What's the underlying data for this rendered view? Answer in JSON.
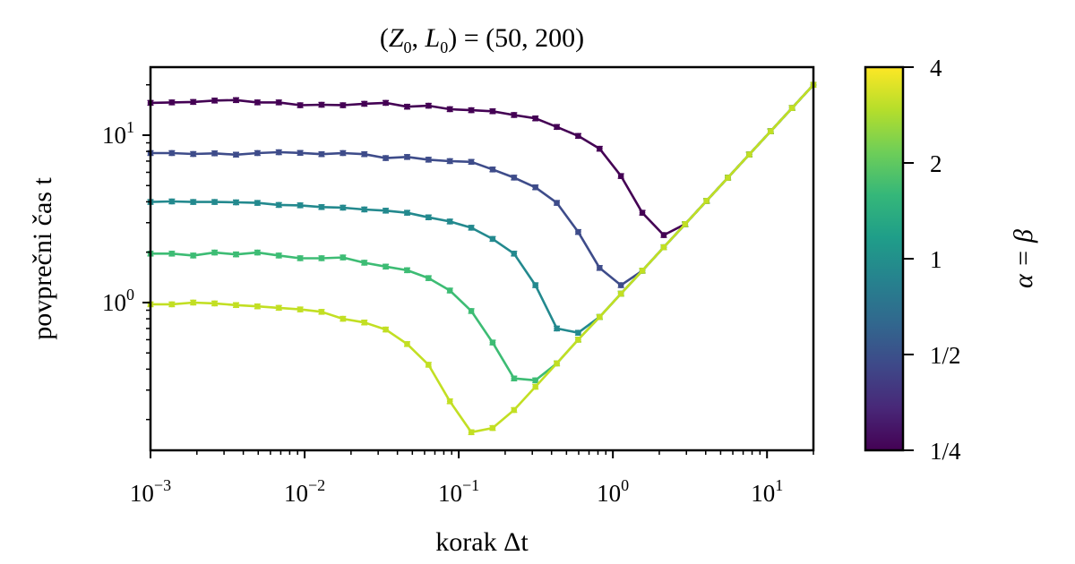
{
  "chart_data": {
    "type": "line",
    "title": "(Z0, L0) = (50, 200)",
    "title_parts": {
      "open": "(",
      "z": "Z",
      "z_sub": "0",
      "comma": ", ",
      "l": "L",
      "l_sub": "0",
      "rest": ") = (50, 200)"
    },
    "xlabel": "korak Δt",
    "ylabel": "povprečni čas t",
    "xscale": "log",
    "yscale": "log",
    "xlim": [
      0.001,
      20
    ],
    "ylim": [
      0.131,
      25.5
    ],
    "grid": false,
    "x_ticks": [
      {
        "base": "10",
        "exp": "−3",
        "value": 0.001
      },
      {
        "base": "10",
        "exp": "−2",
        "value": 0.01
      },
      {
        "base": "10",
        "exp": "−1",
        "value": 0.1
      },
      {
        "base": "10",
        "exp": "0",
        "value": 1
      },
      {
        "base": "10",
        "exp": "1",
        "value": 10
      }
    ],
    "y_ticks": [
      {
        "base": "10",
        "exp": "0",
        "value": 1
      },
      {
        "base": "10",
        "exp": "1",
        "value": 10
      }
    ],
    "x": [
      0.001,
      0.001376,
      0.001894,
      0.002607,
      0.003589,
      0.00494,
      0.0068,
      0.009359,
      0.01288,
      0.01773,
      0.02441,
      0.03359,
      0.04624,
      0.06364,
      0.0876,
      0.1206,
      0.1659,
      0.2284,
      0.3144,
      0.4327,
      0.5956,
      0.8198,
      1.128,
      1.553,
      2.138,
      2.942,
      4.05,
      5.574,
      7.672,
      10.56,
      14.53,
      20.0
    ],
    "series": [
      {
        "name": "α=β=1/4",
        "color": "#440154",
        "values": [
          15.6,
          15.7,
          15.8,
          16.1,
          16.2,
          15.7,
          15.7,
          15.1,
          15.2,
          15.1,
          15.4,
          15.6,
          14.8,
          15.0,
          14.3,
          14.1,
          13.9,
          13.2,
          12.6,
          11.2,
          9.9,
          8.3,
          5.7,
          3.44,
          2.53,
          2.94,
          4.05,
          5.57,
          7.67,
          10.56,
          14.53,
          20.0
        ]
      },
      {
        "name": "α=β=1/2",
        "color": "#3e4c8a",
        "values": [
          7.82,
          7.82,
          7.72,
          7.79,
          7.65,
          7.82,
          7.91,
          7.84,
          7.7,
          7.82,
          7.7,
          7.3,
          7.41,
          7.14,
          7.0,
          6.93,
          6.24,
          5.58,
          4.88,
          3.94,
          2.64,
          1.61,
          1.27,
          1.55,
          2.14,
          2.94,
          4.05,
          5.57,
          7.67,
          10.56,
          14.53,
          20.0
        ]
      },
      {
        "name": "α=β=1",
        "color": "#23898e",
        "values": [
          3.99,
          4.02,
          3.99,
          3.99,
          3.97,
          3.94,
          3.83,
          3.81,
          3.72,
          3.69,
          3.6,
          3.54,
          3.44,
          3.23,
          3.05,
          2.8,
          2.4,
          1.96,
          1.27,
          0.7,
          0.66,
          0.82,
          1.13,
          1.55,
          2.14,
          2.94,
          4.05,
          5.57,
          7.67,
          10.56,
          14.53,
          20.0
        ]
      },
      {
        "name": "α=β=2",
        "color": "#3dbc74",
        "values": [
          1.96,
          1.96,
          1.91,
          1.99,
          1.94,
          1.99,
          1.91,
          1.84,
          1.84,
          1.86,
          1.73,
          1.64,
          1.56,
          1.4,
          1.18,
          0.89,
          0.577,
          0.352,
          0.343,
          0.433,
          0.6,
          0.82,
          1.13,
          1.55,
          2.14,
          2.94,
          4.05,
          5.57,
          7.67,
          10.56,
          14.53,
          20.0
        ]
      },
      {
        "name": "α=β=4",
        "color": "#c2df23",
        "values": [
          0.976,
          0.976,
          1.0,
          0.988,
          0.966,
          0.949,
          0.93,
          0.91,
          0.88,
          0.8,
          0.76,
          0.69,
          0.565,
          0.425,
          0.257,
          0.168,
          0.178,
          0.228,
          0.314,
          0.433,
          0.6,
          0.82,
          1.13,
          1.55,
          2.14,
          2.94,
          4.05,
          5.57,
          7.67,
          10.56,
          14.53,
          20.0
        ]
      }
    ],
    "colorbar": {
      "label": "α = β",
      "scale": "log",
      "range": [
        0.25,
        4
      ],
      "ticks": [
        {
          "label": "1/4",
          "value": 0.25
        },
        {
          "label": "1/2",
          "value": 0.5
        },
        {
          "label": "1",
          "value": 1
        },
        {
          "label": "2",
          "value": 2
        },
        {
          "label": "4",
          "value": 4
        }
      ],
      "colormap": [
        "#440154",
        "#482878",
        "#3e4989",
        "#31688e",
        "#26828e",
        "#1f9e89",
        "#35b779",
        "#6ece58",
        "#b5de2b",
        "#fde725"
      ]
    }
  }
}
